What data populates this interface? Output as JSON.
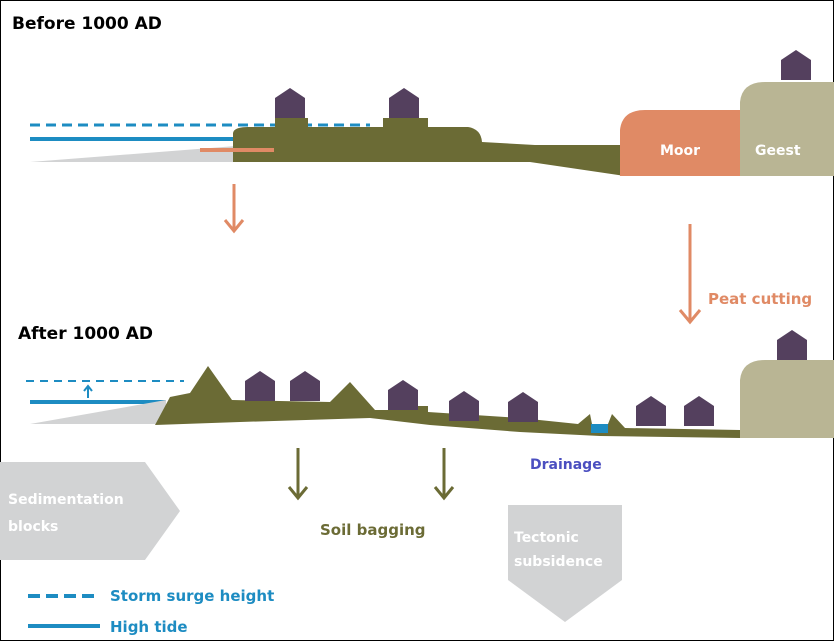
{
  "before": {
    "title": "Before 1000 AD",
    "moor": "Moor",
    "geest": "Geest",
    "peat_cutting": "Peat cutting"
  },
  "after": {
    "title": "After 1000 AD",
    "drainage": "Drainage",
    "sedimentation_blocks": [
      "Sedimentation",
      "blocks"
    ],
    "soil_bagging": "Soil bagging",
    "tectonic_subsidence": [
      "Tectonic",
      "subsidence"
    ]
  },
  "legend": {
    "storm_surge": "Storm surge height",
    "high_tide": "High tide"
  }
}
